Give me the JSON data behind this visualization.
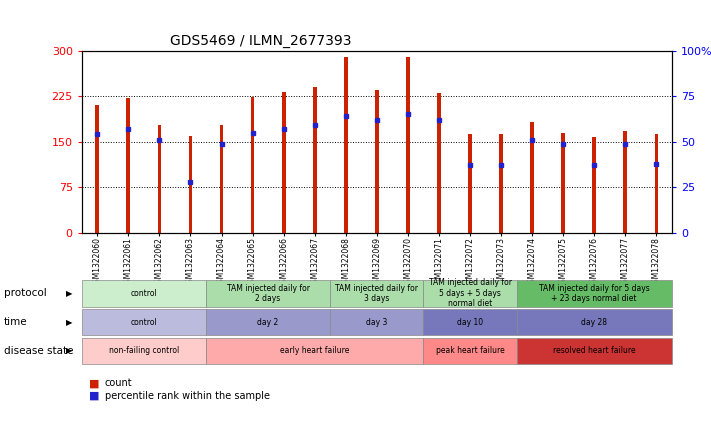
{
  "title": "GDS5469 / ILMN_2677393",
  "samples": [
    "GSM1322060",
    "GSM1322061",
    "GSM1322062",
    "GSM1322063",
    "GSM1322064",
    "GSM1322065",
    "GSM1322066",
    "GSM1322067",
    "GSM1322068",
    "GSM1322069",
    "GSM1322070",
    "GSM1322071",
    "GSM1322072",
    "GSM1322073",
    "GSM1322074",
    "GSM1322075",
    "GSM1322076",
    "GSM1322077",
    "GSM1322078"
  ],
  "counts": [
    210,
    222,
    178,
    160,
    178,
    224,
    232,
    240,
    290,
    235,
    290,
    230,
    163,
    163,
    183,
    165,
    158,
    168,
    163
  ],
  "percentile_ranks_pct": [
    54,
    57,
    51,
    28,
    49,
    55,
    57,
    59,
    64,
    62,
    65,
    62,
    37,
    37,
    51,
    49,
    37,
    49,
    38
  ],
  "ylim_left": [
    0,
    300
  ],
  "ylim_right": [
    0,
    100
  ],
  "yticks_left": [
    0,
    75,
    150,
    225,
    300
  ],
  "yticks_right": [
    0,
    25,
    50,
    75,
    100
  ],
  "bar_color": "#CC2200",
  "dot_color": "#2222CC",
  "bar_width": 0.12,
  "protocol_groups": [
    {
      "label": "control",
      "start": 0,
      "end": 4,
      "color": "#CCEECC"
    },
    {
      "label": "TAM injected daily for\n2 days",
      "start": 4,
      "end": 8,
      "color": "#AADDAA"
    },
    {
      "label": "TAM injected daily for\n3 days",
      "start": 8,
      "end": 11,
      "color": "#AADDAA"
    },
    {
      "label": "TAM injected daily for\n5 days + 5 days\nnormal diet",
      "start": 11,
      "end": 14,
      "color": "#AADDAA"
    },
    {
      "label": "TAM injected daily for 5 days\n+ 23 days normal diet",
      "start": 14,
      "end": 19,
      "color": "#66BB66"
    }
  ],
  "time_groups": [
    {
      "label": "control",
      "start": 0,
      "end": 4,
      "color": "#BBBBDD"
    },
    {
      "label": "day 2",
      "start": 4,
      "end": 8,
      "color": "#9999CC"
    },
    {
      "label": "day 3",
      "start": 8,
      "end": 11,
      "color": "#9999CC"
    },
    {
      "label": "day 10",
      "start": 11,
      "end": 14,
      "color": "#7777BB"
    },
    {
      "label": "day 28",
      "start": 14,
      "end": 19,
      "color": "#7777BB"
    }
  ],
  "disease_groups": [
    {
      "label": "non-failing control",
      "start": 0,
      "end": 4,
      "color": "#FFCCCC"
    },
    {
      "label": "early heart failure",
      "start": 4,
      "end": 11,
      "color": "#FFAAAA"
    },
    {
      "label": "peak heart failure",
      "start": 11,
      "end": 14,
      "color": "#FF8888"
    },
    {
      "label": "resolved heart failure",
      "start": 14,
      "end": 19,
      "color": "#CC3333"
    }
  ],
  "left_labels": [
    "protocol",
    "time",
    "disease state"
  ],
  "legend_items": [
    "count",
    "percentile rank within the sample"
  ],
  "legend_colors": [
    "#CC2200",
    "#2222CC"
  ]
}
